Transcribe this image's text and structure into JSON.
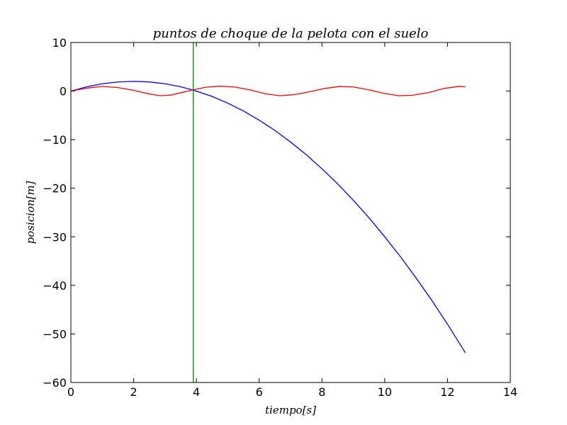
{
  "chart_data": {
    "type": "line",
    "title": "puntos de choque de la pelota con el suelo",
    "xlabel": "tiempo[s]",
    "ylabel": "posicion[m]",
    "xlim": [
      0,
      14
    ],
    "ylim": [
      -60,
      10
    ],
    "xticks": [
      0,
      2,
      4,
      6,
      8,
      10,
      12,
      14
    ],
    "yticks": [
      10,
      0,
      -10,
      -20,
      -30,
      -40,
      -50,
      -60
    ],
    "xtick_labels": [
      "0",
      "2",
      "4",
      "6",
      "8",
      "10",
      "12",
      "14"
    ],
    "ytick_labels": [
      "10",
      "0",
      "−10",
      "−20",
      "−30",
      "−40",
      "−50",
      "−60"
    ],
    "grid": false,
    "series": [
      {
        "color": "#0000ff",
        "x": [
          0,
          0.5,
          1,
          1.5,
          2,
          2.5,
          3,
          3.5,
          3.9,
          4.5,
          5,
          5.5,
          6,
          6.5,
          7,
          7.5,
          8,
          8.5,
          9,
          9.5,
          10,
          10.5,
          11,
          11.5,
          12,
          12.57
        ],
        "y": [
          0,
          0.87,
          1.5,
          1.87,
          2.0,
          1.88,
          1.5,
          0.88,
          0.2,
          -1.1,
          -2.5,
          -4.1,
          -6.0,
          -8.1,
          -10.5,
          -13.1,
          -16.0,
          -19.1,
          -22.5,
          -26.1,
          -30.0,
          -34.1,
          -38.5,
          -43.1,
          -48.0,
          -53.9
        ]
      },
      {
        "color": "#ff0000",
        "x": [
          0,
          0.5,
          1,
          1.5,
          2,
          2.5,
          2.85,
          3.2,
          3.6,
          3.9,
          4.3,
          4.75,
          5.2,
          5.7,
          6.2,
          6.65,
          7.1,
          7.6,
          8.1,
          8.55,
          9.0,
          9.5,
          10.0,
          10.45,
          10.9,
          11.4,
          11.9,
          12.35,
          12.57
        ],
        "y": [
          0,
          0.6,
          0.96,
          0.72,
          0.15,
          -0.6,
          -0.95,
          -0.8,
          -0.2,
          0.25,
          0.8,
          1.0,
          0.85,
          0.25,
          -0.55,
          -0.95,
          -0.75,
          -0.15,
          0.55,
          0.95,
          0.85,
          0.25,
          -0.5,
          -0.95,
          -0.85,
          -0.3,
          0.55,
          0.95,
          0.9
        ]
      },
      {
        "color": "#008000",
        "x": [
          3.9,
          3.9
        ],
        "y": [
          10,
          -60
        ]
      }
    ]
  }
}
